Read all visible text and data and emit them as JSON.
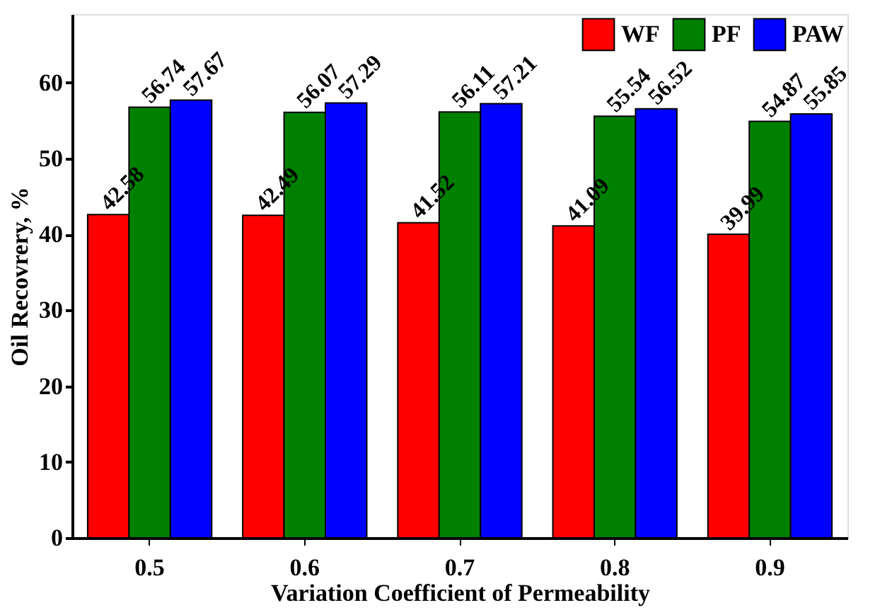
{
  "chart_data": {
    "type": "bar",
    "xlabel": "Variation Coefficient of Permeability",
    "ylabel": "Oil Recovrery, %",
    "categories": [
      "0.5",
      "0.6",
      "0.7",
      "0.8",
      "0.9"
    ],
    "series": [
      {
        "name": "WF",
        "color": "#ff0000",
        "values": [
          42.58,
          42.49,
          41.52,
          41.09,
          39.99
        ]
      },
      {
        "name": "PF",
        "color": "#008000",
        "values": [
          56.74,
          56.07,
          56.11,
          55.54,
          54.87
        ]
      },
      {
        "name": "PAW",
        "color": "#0000ff",
        "values": [
          57.67,
          57.29,
          57.21,
          56.52,
          55.85
        ]
      }
    ],
    "ylim": [
      0,
      69
    ],
    "yticks": [
      0,
      10,
      20,
      30,
      40,
      50,
      60
    ],
    "grid": false,
    "legend": "top right",
    "data_labels": true
  }
}
